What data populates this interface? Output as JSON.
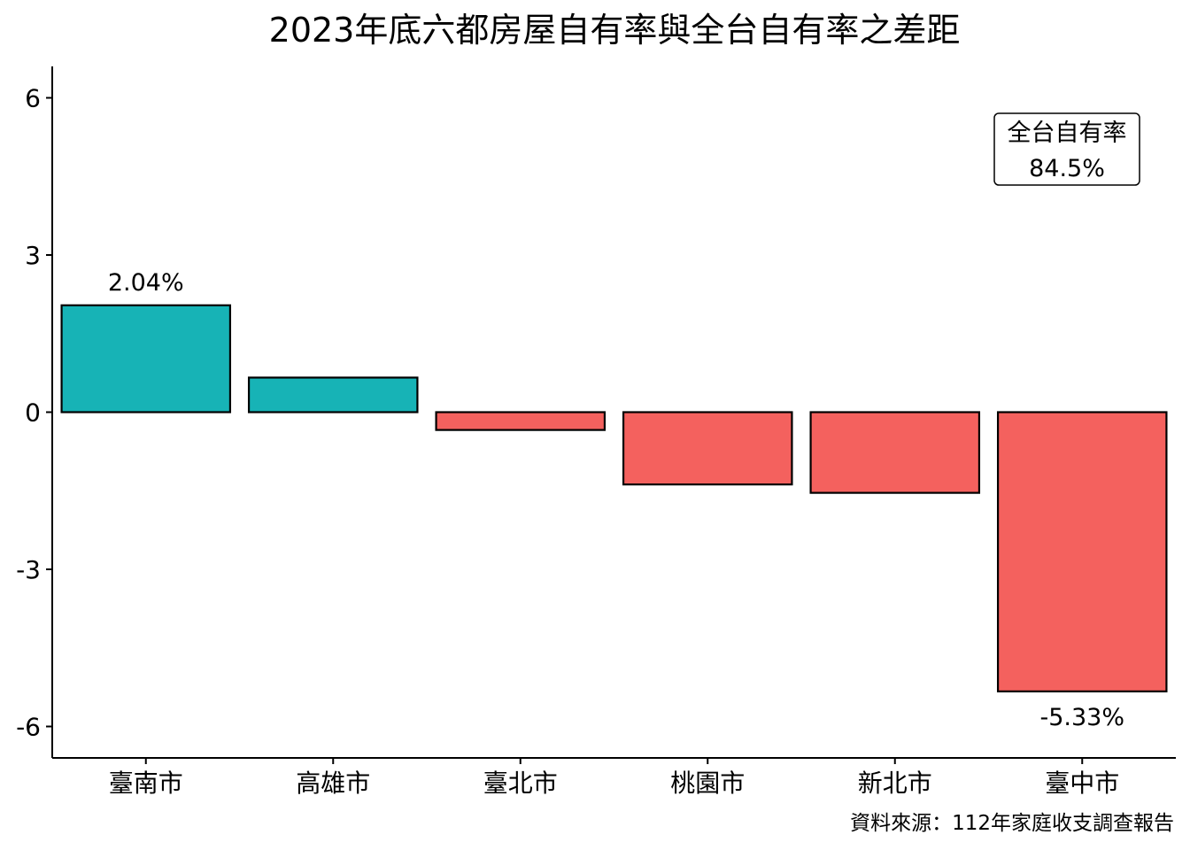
{
  "chart_data": {
    "type": "bar",
    "title": "2023年底六都房屋自有率與全台自有率之差距",
    "xlabel": "",
    "ylabel": "",
    "categories": [
      "臺南市",
      "高雄市",
      "臺北市",
      "桃園市",
      "新北市",
      "臺中市"
    ],
    "values": [
      2.04,
      0.66,
      -0.34,
      -1.38,
      -1.54,
      -5.33
    ],
    "data_labels": [
      {
        "index": 0,
        "text": "2.04%"
      },
      {
        "index": 5,
        "text": "-5.33%"
      }
    ],
    "ylim": [
      -6.6,
      6.6
    ],
    "yticks": [
      -6,
      -3,
      0,
      3,
      6
    ],
    "ytick_labels": [
      "-6",
      "-3",
      "0",
      "3",
      "6"
    ],
    "grid": false,
    "legend": "none",
    "colors": {
      "positive": "#17b3b6",
      "negative": "#f4615e",
      "outline": "#000000"
    },
    "annotation": {
      "line1": "全台自有率",
      "line2": "84.5%",
      "placement": "top-right"
    },
    "caption": "資料來源：112年家庭收支調查報告"
  }
}
